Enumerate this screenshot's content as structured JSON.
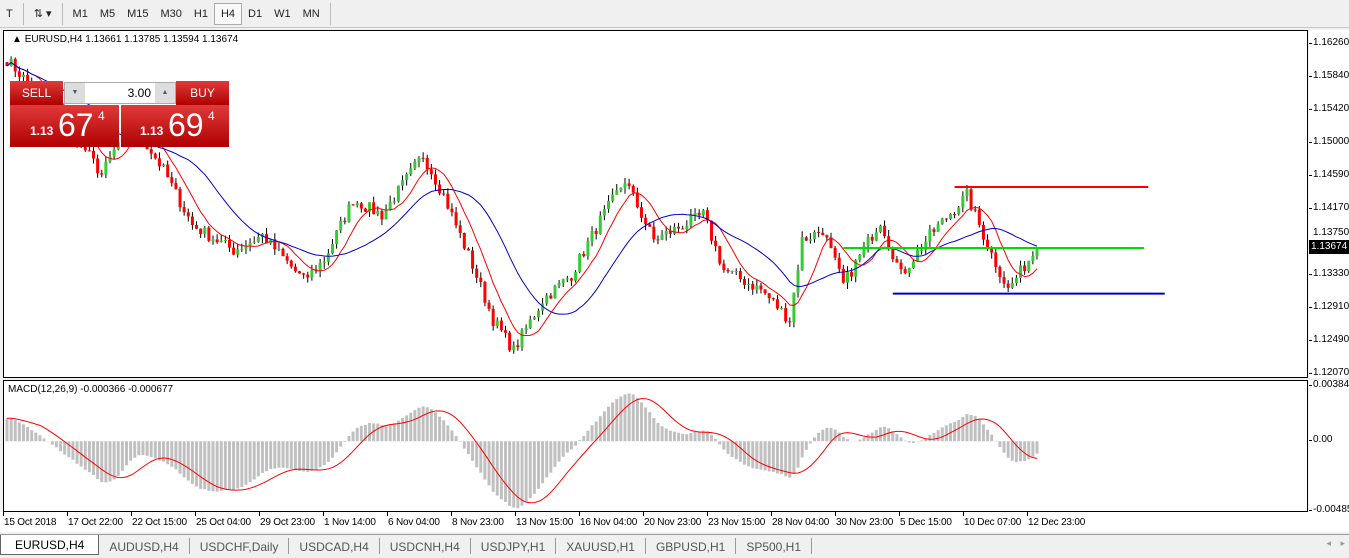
{
  "toolbar": {
    "timeframes": [
      "M1",
      "M5",
      "M15",
      "M30",
      "H1",
      "H4",
      "D1",
      "W1",
      "MN"
    ],
    "active": "H4"
  },
  "chart": {
    "title": "EURUSD,H4  1.13661 1.13785 1.13594 1.13674",
    "trade": {
      "sell_label": "SELL",
      "buy_label": "BUY",
      "lot": "3.00",
      "sell_prefix": "1.13",
      "sell_big": "67",
      "sell_sup": "4",
      "buy_prefix": "1.13",
      "buy_big": "69",
      "buy_sup": "4"
    },
    "current_price": "1.13674",
    "y_ticks": [
      "1.16260",
      "1.15840",
      "1.15420",
      "1.15000",
      "1.14590",
      "1.14170",
      "1.13750",
      "1.13330",
      "1.12910",
      "1.12490",
      "1.12070"
    ],
    "ylim": [
      1.1207,
      1.1626
    ],
    "colors": {
      "bull": "#33cc33",
      "bear": "#ff0000",
      "ma_fast": "#ff0000",
      "ma_slow": "#0000cc"
    },
    "hlines": [
      {
        "price": 1.14445,
        "color": "#ff0000",
        "from_bar": 230,
        "to_bar": 277
      },
      {
        "price": 1.1367,
        "color": "#00dd00",
        "from_bar": 203,
        "to_bar": 276
      },
      {
        "price": 1.1309,
        "color": "#0000cc",
        "from_bar": 215,
        "to_bar": 281
      }
    ],
    "price_path": [
      [
        0,
        1.1606
      ],
      [
        16,
        1.1515
      ],
      [
        23,
        1.146
      ],
      [
        30,
        1.153
      ],
      [
        38,
        1.1466
      ],
      [
        45,
        1.1396
      ],
      [
        55,
        1.1364
      ],
      [
        62,
        1.1383
      ],
      [
        72,
        1.1326
      ],
      [
        77,
        1.1352
      ],
      [
        84,
        1.1428
      ],
      [
        91,
        1.1409
      ],
      [
        101,
        1.1485
      ],
      [
        106,
        1.1434
      ],
      [
        113,
        1.1345
      ],
      [
        118,
        1.1276
      ],
      [
        123,
        1.1237
      ],
      [
        130,
        1.1301
      ],
      [
        137,
        1.1333
      ],
      [
        144,
        1.1402
      ],
      [
        150,
        1.1453
      ],
      [
        157,
        1.1377
      ],
      [
        169,
        1.1409
      ],
      [
        174,
        1.1339
      ],
      [
        183,
        1.1314
      ],
      [
        190,
        1.1276
      ],
      [
        193,
        1.1377
      ],
      [
        198,
        1.139
      ],
      [
        203,
        1.132
      ],
      [
        212,
        1.1402
      ],
      [
        217,
        1.1333
      ],
      [
        224,
        1.1383
      ],
      [
        233,
        1.1434
      ],
      [
        238,
        1.1371
      ],
      [
        243,
        1.1314
      ],
      [
        250,
        1.13674
      ]
    ]
  },
  "macd": {
    "label": "MACD(12,26,9) -0.000366 -0.000677",
    "y_ticks": [
      "0.003847",
      "0.00",
      "-0.004856"
    ],
    "ylim": [
      -0.004856,
      0.003847
    ],
    "hist_color": "#c0c0c0",
    "signal_color": "#ff0000"
  },
  "x_ticks": [
    "15 Oct 2018",
    "17 Oct 22:00",
    "22 Oct 15:00",
    "25 Oct 04:00",
    "29 Oct 23:00",
    "1 Nov 14:00",
    "6 Nov 04:00",
    "8 Nov 23:00",
    "13 Nov 15:00",
    "16 Nov 04:00",
    "20 Nov 23:00",
    "23 Nov 15:00",
    "28 Nov 04:00",
    "30 Nov 23:00",
    "5 Dec 15:00",
    "10 Dec 07:00",
    "12 Dec 23:00"
  ],
  "tabs": [
    "EURUSD,H4",
    "AUDUSD,H4",
    "USDCHF,Daily",
    "USDCAD,H4",
    "USDCNH,H4",
    "USDJPY,H1",
    "XAUUSD,H1",
    "GBPUSD,H1",
    "SP500,H1"
  ],
  "active_tab": "EURUSD,H4"
}
